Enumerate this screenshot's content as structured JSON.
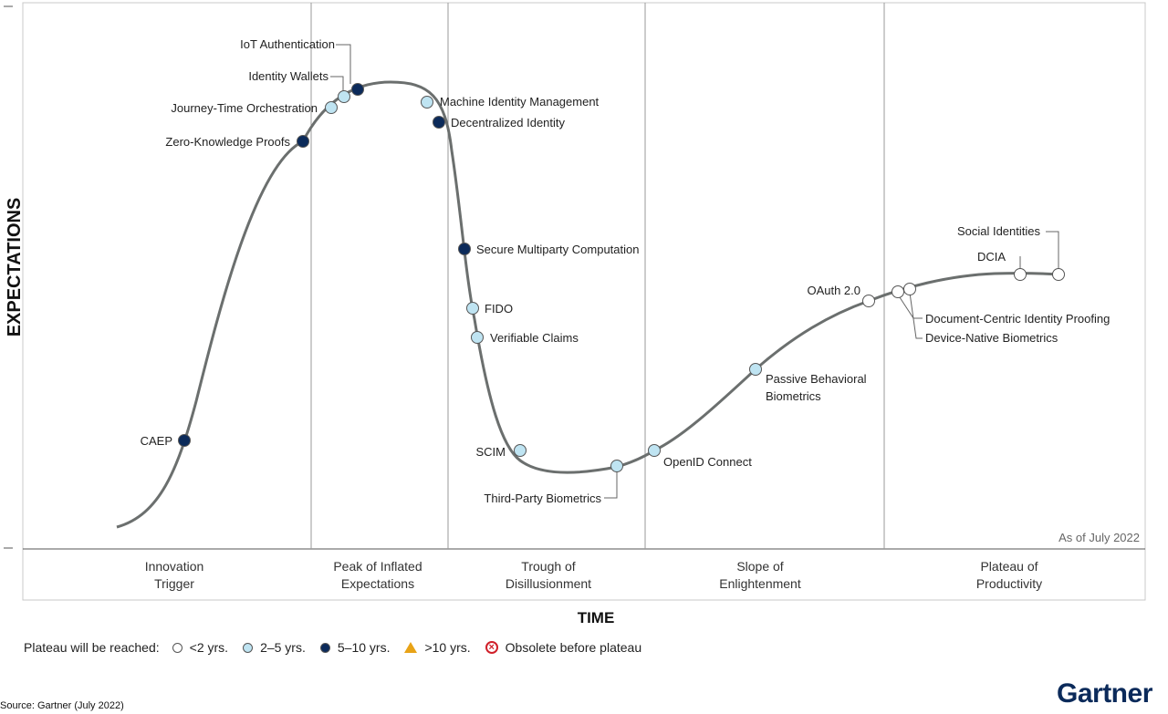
{
  "axes": {
    "y_label": "EXPECTATIONS",
    "x_label": "TIME"
  },
  "as_of": "As of July 2022",
  "phases": [
    {
      "line1": "Innovation",
      "line2": "Trigger"
    },
    {
      "line1": "Peak of Inflated",
      "line2": "Expectations"
    },
    {
      "line1": "Trough of",
      "line2": "Disillusionment"
    },
    {
      "line1": "Slope of",
      "line2": "Enlightenment"
    },
    {
      "line1": "Plateau of",
      "line2": "Productivity"
    }
  ],
  "technologies": [
    {
      "name": "CAEP",
      "plateau": "5-10"
    },
    {
      "name": "Zero-Knowledge Proofs",
      "plateau": "5-10"
    },
    {
      "name": "Journey-Time Orchestration",
      "plateau": "2-5"
    },
    {
      "name": "Identity Wallets",
      "plateau": "2-5"
    },
    {
      "name": "IoT Authentication",
      "plateau": "5-10"
    },
    {
      "name": "Machine Identity Management",
      "plateau": "2-5"
    },
    {
      "name": "Decentralized Identity",
      "plateau": "5-10"
    },
    {
      "name": "Secure Multiparty Computation",
      "plateau": "5-10"
    },
    {
      "name": "FIDO",
      "plateau": "2-5"
    },
    {
      "name": "Verifiable Claims",
      "plateau": "2-5"
    },
    {
      "name": "SCIM",
      "plateau": "2-5"
    },
    {
      "name": "Third-Party Biometrics",
      "plateau": "2-5"
    },
    {
      "name": "OpenID Connect",
      "plateau": "2-5"
    },
    {
      "name": "Passive Behavioral",
      "plateau": "2-5"
    },
    {
      "name": "Biometrics",
      "plateau": "2-5"
    },
    {
      "name": "OAuth 2.0",
      "plateau": "<2"
    },
    {
      "name": "Document-Centric Identity Proofing",
      "plateau": "<2"
    },
    {
      "name": "Device-Native Biometrics",
      "plateau": "<2"
    },
    {
      "name": "DCIA",
      "plateau": "<2"
    },
    {
      "name": "Social Identities",
      "plateau": "<2"
    }
  ],
  "legend": {
    "prefix": "Plateau will be reached:",
    "items": [
      {
        "label": "<2 yrs.",
        "color": "#ffffff"
      },
      {
        "label": "2–5 yrs.",
        "color": "#bfe4f2"
      },
      {
        "label": "5–10 yrs.",
        "color": "#0b2a5a"
      },
      {
        "label": ">10 yrs.",
        "color": "#e8a317"
      },
      {
        "label": "Obsolete before plateau",
        "color": "#d0202a"
      }
    ]
  },
  "colors": {
    "lt2": "#ffffff",
    "2-5": "#bfe4f2",
    "5-10": "#0b2a5a",
    "curve": "#6b6f6e",
    "brand": "#0b2a5a"
  },
  "source": "Source: Gartner (July 2022)",
  "brand": "Gartner"
}
